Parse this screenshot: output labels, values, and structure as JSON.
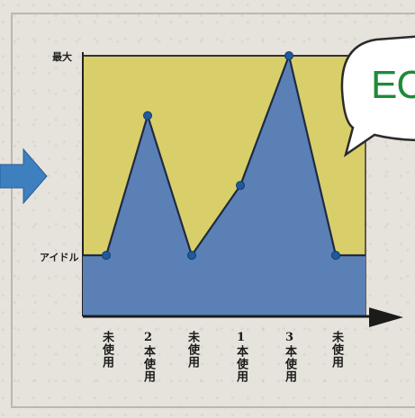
{
  "chart_data": {
    "type": "area",
    "y_levels": [
      "アイドル",
      "最大"
    ],
    "categories": [
      "未使用",
      "2本使用",
      "未使用",
      "1本使用",
      "3本使用",
      "未使用"
    ],
    "values": [
      0,
      0.7,
      0,
      0.35,
      1.0,
      0
    ],
    "series_fill": "#5b80b5",
    "background_fill": "#d8cf6a",
    "line_color": "#1f2a44",
    "marker_color": "#1f5a9e",
    "arrow_color": "#3e7fc0",
    "bubble_text_color": "#1f8a3a"
  },
  "labels": {
    "y_max": "最大",
    "y_idle": "アイドル",
    "x": [
      "未使用",
      "2本使用",
      "未使用",
      "1本使用",
      "3本使用",
      "未使用"
    ]
  },
  "bubble": {
    "text": "EC"
  }
}
